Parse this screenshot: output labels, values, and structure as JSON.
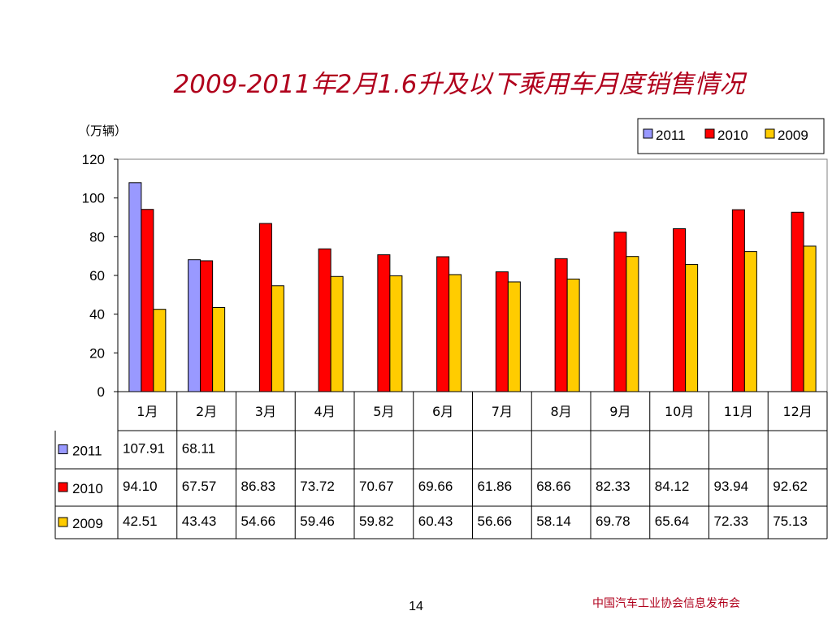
{
  "page": {
    "title": "2009-2011年2月1.6升及以下乘用车月度销售情况",
    "unit": "（万辆）",
    "page_number": "14",
    "footer": "中国汽车工业协会信息发布会"
  },
  "colors": {
    "2011": "#9999ff",
    "2010": "#ff0000",
    "2009": "#ffcc00"
  },
  "chart_data": {
    "type": "bar",
    "categories": [
      "1月",
      "2月",
      "3月",
      "4月",
      "5月",
      "6月",
      "7月",
      "8月",
      "9月",
      "10月",
      "11月",
      "12月"
    ],
    "series": [
      {
        "name": "2011",
        "values": [
          107.91,
          68.11,
          null,
          null,
          null,
          null,
          null,
          null,
          null,
          null,
          null,
          null
        ],
        "labels": [
          "107.91",
          "68.11",
          "",
          "",
          "",
          "",
          "",
          "",
          "",
          "",
          "",
          ""
        ]
      },
      {
        "name": "2010",
        "values": [
          94.1,
          67.57,
          86.83,
          73.72,
          70.67,
          69.66,
          61.86,
          68.66,
          82.33,
          84.12,
          93.94,
          92.62
        ],
        "labels": [
          "94.10",
          "67.57",
          "86.83",
          "73.72",
          "70.67",
          "69.66",
          "61.86",
          "68.66",
          "82.33",
          "84.12",
          "93.94",
          "92.62"
        ]
      },
      {
        "name": "2009",
        "values": [
          42.51,
          43.43,
          54.66,
          59.46,
          59.82,
          60.43,
          56.66,
          58.14,
          69.78,
          65.64,
          72.33,
          75.13
        ],
        "labels": [
          "42.51",
          "43.43",
          "54.66",
          "59.46",
          "59.82",
          "60.43",
          "56.66",
          "58.14",
          "69.78",
          "65.64",
          "72.33",
          "75.13"
        ]
      }
    ],
    "yticks": [
      "0",
      "20",
      "40",
      "60",
      "80",
      "100",
      "120"
    ],
    "ylim": [
      0,
      120
    ],
    "grid": false,
    "legend": "top-right",
    "data_table": true
  }
}
